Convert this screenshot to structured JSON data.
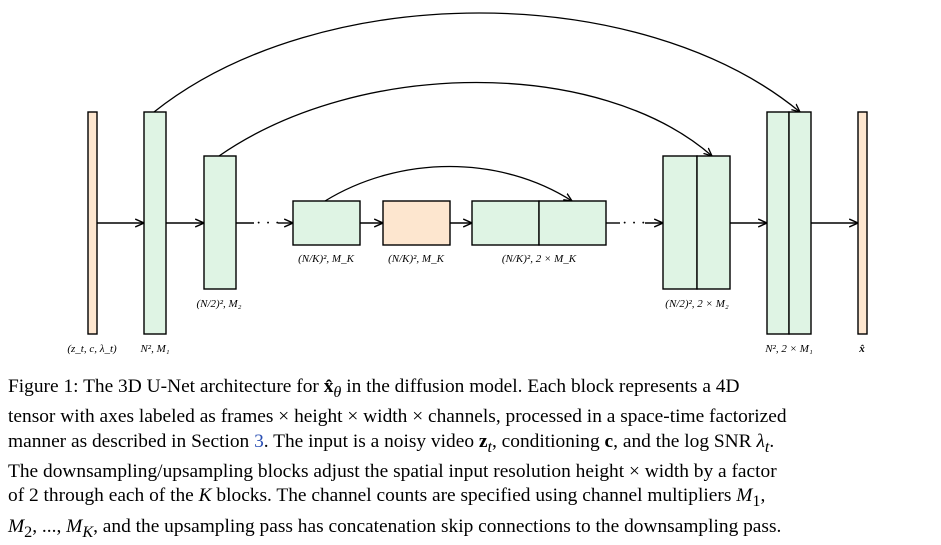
{
  "diagram": {
    "labels": {
      "input": "(z_t, c, λ_t)",
      "down1": "N², M₁",
      "down2": "(N/2)², M₂",
      "downK": "(N/K)², M_K",
      "middle": "(N/K)², M_K",
      "upK": "(N/K)², 2 × M_K",
      "up2": "(N/2)², 2 × M₂",
      "up1": "N², 2 × M₁",
      "output": "x̂"
    },
    "ellipsis": "· · ·",
    "colors": {
      "block_green": "#dff4e4",
      "block_orange": "#fde6cf",
      "link_blue": "#2a4fb3"
    }
  },
  "caption": {
    "label": "Figure 1:",
    "lines": [
      {
        "parts": [
          "The 3D U-Net architecture for ",
          "x̂",
          "θ",
          " in the diffusion model. Each block represents a 4D"
        ]
      },
      {
        "text": "tensor with axes labeled as frames × height × width × channels, processed in a space-time factorized"
      },
      {
        "parts": [
          "manner as described in Section ",
          "3",
          ". The input is a noisy video ",
          "z",
          "t",
          ", conditioning ",
          "c",
          ", and the log SNR ",
          "λ",
          "t",
          "."
        ]
      },
      {
        "text": "The downsampling/upsampling blocks adjust the spatial input resolution height × width by a factor"
      },
      {
        "parts": [
          "of 2 through each of the ",
          "K",
          " blocks. The channel counts are specified using channel multipliers ",
          "M",
          "1",
          ","
        ]
      },
      {
        "parts": [
          "M",
          "2",
          ", ..., ",
          "M",
          "K",
          ", and the upsampling pass has concatenation skip connections to the downsampling pass."
        ]
      }
    ]
  }
}
